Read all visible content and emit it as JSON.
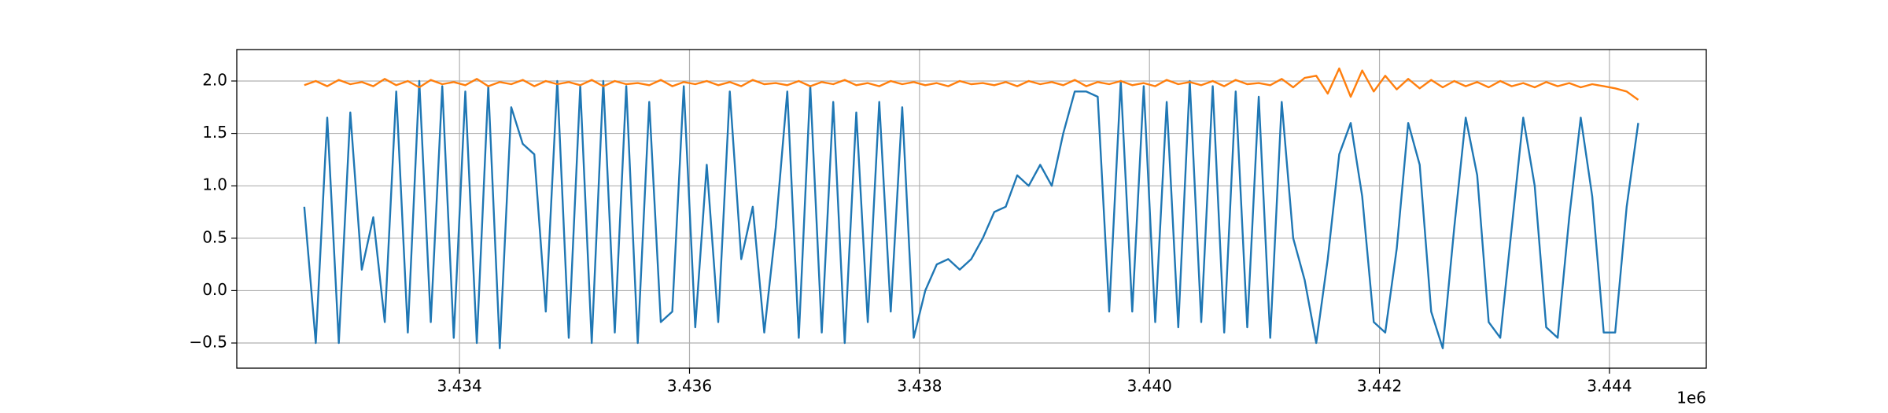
{
  "chart_data": {
    "type": "line",
    "x": [
      3432650,
      3432750,
      3432850,
      3432950,
      3433050,
      3433150,
      3433250,
      3433350,
      3433450,
      3433550,
      3433650,
      3433750,
      3433850,
      3433950,
      3434050,
      3434150,
      3434250,
      3434350,
      3434450,
      3434550,
      3434650,
      3434750,
      3434850,
      3434950,
      3435050,
      3435150,
      3435250,
      3435350,
      3435450,
      3435550,
      3435650,
      3435750,
      3435850,
      3435950,
      3436050,
      3436150,
      3436250,
      3436350,
      3436450,
      3436550,
      3436650,
      3436750,
      3436850,
      3436950,
      3437050,
      3437150,
      3437250,
      3437350,
      3437450,
      3437550,
      3437650,
      3437750,
      3437850,
      3437950,
      3438050,
      3438150,
      3438250,
      3438350,
      3438450,
      3438550,
      3438650,
      3438750,
      3438850,
      3438950,
      3439050,
      3439150,
      3439250,
      3439350,
      3439450,
      3439550,
      3439650,
      3439750,
      3439850,
      3439950,
      3440050,
      3440150,
      3440250,
      3440350,
      3440450,
      3440550,
      3440650,
      3440750,
      3440850,
      3440950,
      3441050,
      3441150,
      3441250,
      3441350,
      3441450,
      3441550,
      3441650,
      3441750,
      3441850,
      3441950,
      3442050,
      3442150,
      3442250,
      3442350,
      3442450,
      3442550,
      3442650,
      3442750,
      3442850,
      3442950,
      3443050,
      3443150,
      3443250,
      3443350,
      3443450,
      3443550,
      3443650,
      3443750,
      3443850,
      3443950,
      3444050,
      3444150,
      3444250
    ],
    "series": [
      {
        "color": "#1f77b4",
        "values": [
          0.8,
          -0.5,
          1.65,
          -0.5,
          1.7,
          0.2,
          0.7,
          -0.3,
          1.9,
          -0.4,
          2.0,
          -0.3,
          1.95,
          -0.45,
          1.9,
          -0.5,
          1.95,
          -0.55,
          1.75,
          1.4,
          1.3,
          -0.2,
          2.0,
          -0.45,
          1.95,
          -0.5,
          2.0,
          -0.4,
          1.95,
          -0.5,
          1.8,
          -0.3,
          -0.2,
          1.95,
          -0.35,
          1.2,
          -0.3,
          1.9,
          0.3,
          0.8,
          -0.4,
          0.6,
          1.9,
          -0.45,
          1.95,
          -0.4,
          1.8,
          -0.5,
          1.7,
          -0.3,
          1.8,
          -0.2,
          1.75,
          -0.45,
          0.0,
          0.25,
          0.3,
          0.2,
          0.3,
          0.5,
          0.75,
          0.8,
          1.1,
          1.0,
          1.2,
          1.0,
          1.5,
          1.9,
          1.9,
          1.85,
          -0.2,
          2.0,
          -0.2,
          1.95,
          -0.3,
          1.8,
          -0.35,
          2.0,
          -0.3,
          1.95,
          -0.4,
          1.9,
          -0.35,
          1.85,
          -0.45,
          1.8,
          0.5,
          0.1,
          -0.5,
          0.3,
          1.3,
          1.6,
          0.9,
          -0.3,
          -0.4,
          0.4,
          1.6,
          1.2,
          -0.2,
          -0.55,
          0.6,
          1.65,
          1.1,
          -0.3,
          -0.45,
          0.6,
          1.65,
          1.0,
          -0.35,
          -0.45,
          0.7,
          1.65,
          0.9,
          -0.4,
          -0.4,
          0.8,
          1.6
        ]
      },
      {
        "color": "#ff7f0e",
        "values": [
          1.96,
          2.0,
          1.95,
          2.01,
          1.97,
          1.99,
          1.95,
          2.02,
          1.96,
          2.0,
          1.94,
          2.01,
          1.97,
          1.99,
          1.96,
          2.02,
          1.95,
          1.99,
          1.97,
          2.01,
          1.95,
          2.0,
          1.97,
          1.99,
          1.96,
          2.01,
          1.95,
          2.0,
          1.97,
          1.98,
          1.96,
          2.01,
          1.95,
          1.99,
          1.97,
          2.0,
          1.96,
          1.99,
          1.95,
          2.01,
          1.97,
          1.98,
          1.96,
          2.0,
          1.95,
          1.99,
          1.97,
          2.01,
          1.96,
          1.98,
          1.95,
          2.0,
          1.97,
          1.99,
          1.96,
          1.98,
          1.95,
          2.0,
          1.97,
          1.98,
          1.96,
          1.99,
          1.95,
          2.0,
          1.97,
          1.99,
          1.96,
          2.01,
          1.95,
          1.99,
          1.97,
          2.0,
          1.96,
          1.98,
          1.95,
          2.01,
          1.97,
          1.99,
          1.96,
          2.0,
          1.95,
          2.01,
          1.97,
          1.98,
          1.96,
          2.02,
          1.94,
          2.03,
          2.05,
          1.88,
          2.12,
          1.85,
          2.1,
          1.9,
          2.05,
          1.92,
          2.02,
          1.93,
          2.01,
          1.94,
          2.0,
          1.95,
          1.99,
          1.94,
          2.0,
          1.95,
          1.98,
          1.94,
          1.99,
          1.95,
          1.98,
          1.94,
          1.97,
          1.95,
          1.93,
          1.9,
          1.82
        ]
      }
    ],
    "xlim": [
      3432063,
      3444842
    ],
    "ylim": [
      -0.74,
      2.3
    ],
    "xticks": [
      {
        "value": 3434000,
        "label": "3.434"
      },
      {
        "value": 3436000,
        "label": "3.436"
      },
      {
        "value": 3438000,
        "label": "3.438"
      },
      {
        "value": 3440000,
        "label": "3.440"
      },
      {
        "value": 3442000,
        "label": "3.442"
      },
      {
        "value": 3444000,
        "label": "3.444"
      }
    ],
    "x_offset_label": "1e6",
    "yticks": [
      {
        "value": -0.5,
        "label": "−0.5"
      },
      {
        "value": 0,
        "label": "0.0"
      },
      0.5,
      {
        "value": 1,
        "label": "1.0"
      },
      1.5,
      {
        "value": 2,
        "label": "2.0"
      }
    ],
    "grid": true
  }
}
